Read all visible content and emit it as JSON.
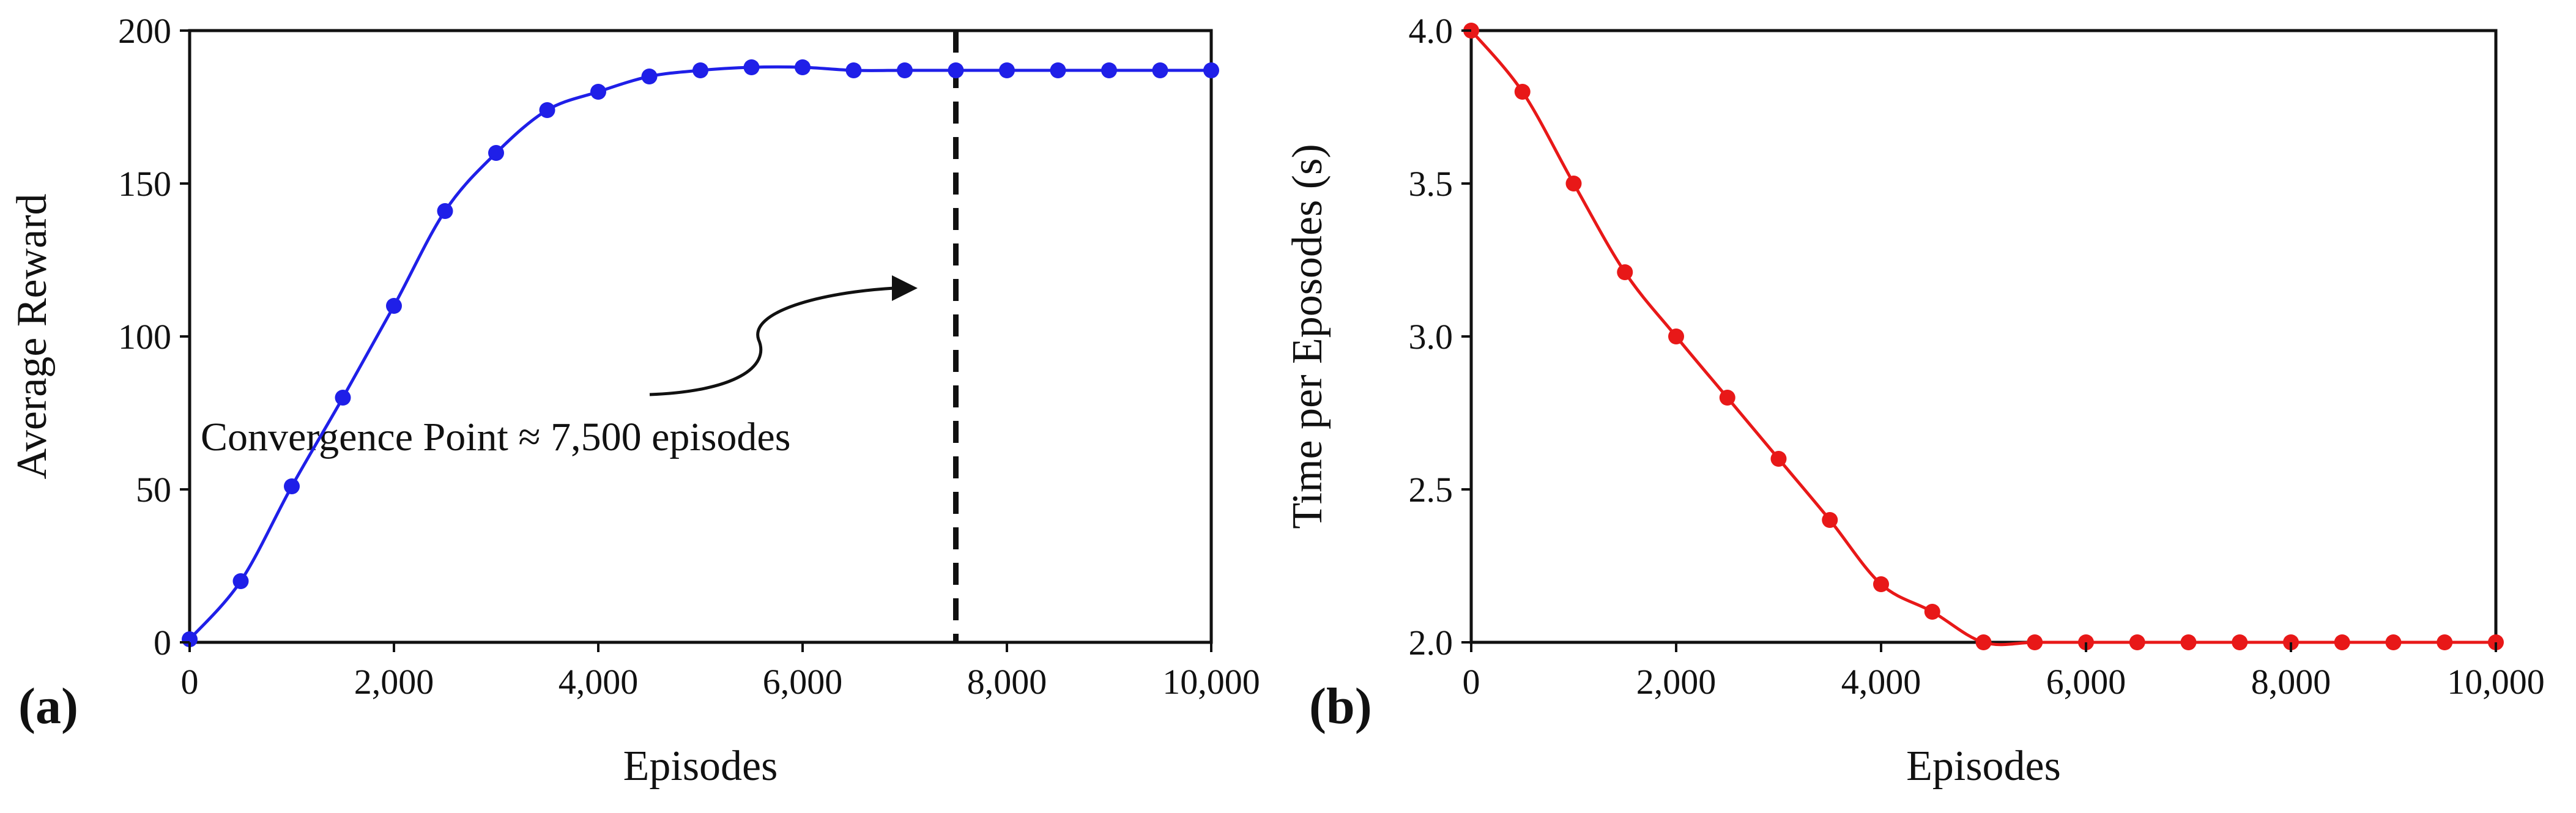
{
  "chart_data": [
    {
      "panel": "(a)",
      "type": "line",
      "xlabel": "Episodes",
      "ylabel": "Average Reward",
      "xlim": [
        0,
        10000
      ],
      "ylim": [
        0,
        200
      ],
      "xticks": [
        0,
        2000,
        4000,
        6000,
        8000,
        10000
      ],
      "xtick_labels": [
        "0",
        "2,000",
        "4,000",
        "6,000",
        "8,000",
        "10,000"
      ],
      "yticks": [
        0,
        50,
        100,
        150,
        200
      ],
      "ytick_labels": [
        "0",
        "50",
        "100",
        "150",
        "200"
      ],
      "color": "#1f1fe8",
      "x": [
        0,
        500,
        1000,
        1500,
        2000,
        2500,
        3000,
        3500,
        4000,
        4500,
        5000,
        5500,
        6000,
        6500,
        7000,
        7500,
        8000,
        8500,
        9000,
        9500,
        10000
      ],
      "y": [
        1,
        20,
        51,
        80,
        110,
        141,
        160,
        174,
        180,
        185,
        187,
        188,
        188,
        187,
        187,
        187,
        187,
        187,
        187,
        187,
        187
      ],
      "vline": {
        "x": 7500,
        "style": "dashed",
        "color": "#111111"
      },
      "annotation": {
        "text": "Convergence Point ≈ 7,500 episodes"
      }
    },
    {
      "panel": "(b)",
      "type": "line",
      "xlabel": "Episodes",
      "ylabel": "Time per Eposodes (s)",
      "xlim": [
        0,
        10000
      ],
      "ylim": [
        2.0,
        4.0
      ],
      "xticks": [
        0,
        2000,
        4000,
        6000,
        8000,
        10000
      ],
      "xtick_labels": [
        "0",
        "2,000",
        "4,000",
        "6,000",
        "8,000",
        "10,000"
      ],
      "yticks": [
        2.0,
        2.5,
        3.0,
        3.5,
        4.0
      ],
      "ytick_labels": [
        "2.0",
        "2.5",
        "3.0",
        "3.5",
        "4.0"
      ],
      "color": "#e81818",
      "x": [
        0,
        500,
        1000,
        1500,
        2000,
        2500,
        3000,
        3500,
        4000,
        4500,
        5000,
        5500,
        6000,
        6500,
        7000,
        7500,
        8000,
        8500,
        9000,
        9500,
        10000
      ],
      "y": [
        4.0,
        3.8,
        3.5,
        3.21,
        3.0,
        2.8,
        2.6,
        2.4,
        2.19,
        2.1,
        2.0,
        2.0,
        2.0,
        2.0,
        2.0,
        2.0,
        2.0,
        2.0,
        2.0,
        2.0,
        2.0
      ]
    }
  ]
}
